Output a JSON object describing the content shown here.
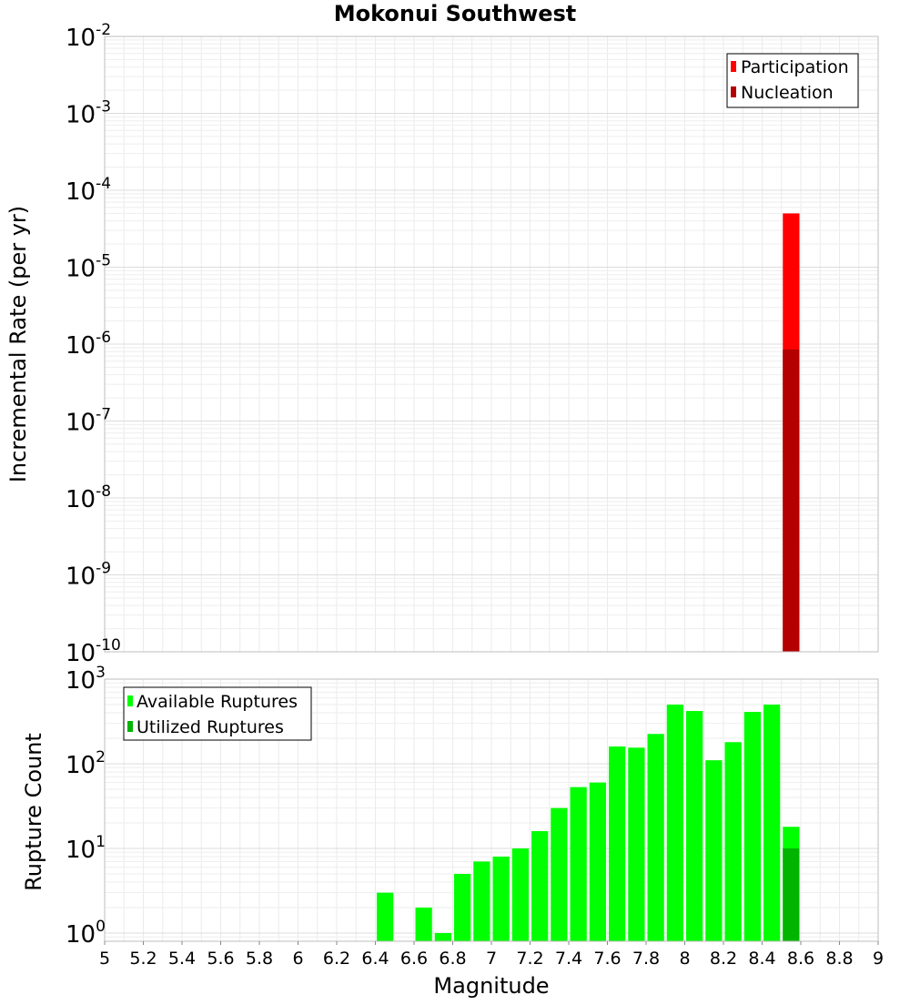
{
  "title": "Mokonui Southwest",
  "xlabel": "Magnitude",
  "colors": {
    "participation": "#ff0000",
    "nucleation": "#b40000",
    "available": "#00ff00",
    "utilized": "#00b400",
    "grid": "#e6e6e6",
    "frame": "#bdbdbd"
  },
  "chart_data": [
    {
      "type": "bar",
      "ylabel": "Incremental Rate (per yr)",
      "yscale": "log",
      "xlim": [
        5,
        9
      ],
      "ylim": [
        1e-10,
        0.01
      ],
      "grid": true,
      "legend_position": "top-right",
      "bin_width": 0.1,
      "ytick_exponents": [
        "-2",
        "-3",
        "-4",
        "-5",
        "-6",
        "-7",
        "-8",
        "-9",
        "-10"
      ],
      "series": [
        {
          "name": "Participation",
          "color": "#ff0000",
          "x": [
            8.55
          ],
          "y": [
            5e-05
          ]
        },
        {
          "name": "Nucleation",
          "color": "#b40000",
          "x": [
            8.55
          ],
          "y": [
            8.5e-07
          ]
        }
      ]
    },
    {
      "type": "bar",
      "ylabel": "Rupture Count",
      "yscale": "log",
      "xlim": [
        5,
        9
      ],
      "ylim": [
        0.8,
        1000
      ],
      "grid": true,
      "legend_position": "top-left",
      "bin_width": 0.1,
      "ytick_exponents": [
        "3",
        "2",
        "1",
        "0"
      ],
      "xticks": [
        "5",
        "5.2",
        "5.4",
        "5.6",
        "5.8",
        "6",
        "6.2",
        "6.4",
        "6.6",
        "6.8",
        "7",
        "7.2",
        "7.4",
        "7.6",
        "7.8",
        "8",
        "8.2",
        "8.4",
        "8.6",
        "8.8",
        "9"
      ],
      "series": [
        {
          "name": "Available Ruptures",
          "color": "#00ff00",
          "x": [
            6.45,
            6.65,
            6.75,
            6.85,
            6.95,
            7.05,
            7.15,
            7.25,
            7.35,
            7.45,
            7.55,
            7.65,
            7.75,
            7.85,
            7.95,
            8.05,
            8.15,
            8.25,
            8.35,
            8.45,
            8.55
          ],
          "y": [
            3,
            2,
            1,
            5,
            7,
            8,
            10,
            16,
            30,
            53,
            60,
            160,
            155,
            225,
            500,
            420,
            110,
            180,
            410,
            500,
            18
          ]
        },
        {
          "name": "Utilized Ruptures",
          "color": "#00b400",
          "x": [
            8.55
          ],
          "y": [
            10
          ]
        }
      ]
    }
  ]
}
